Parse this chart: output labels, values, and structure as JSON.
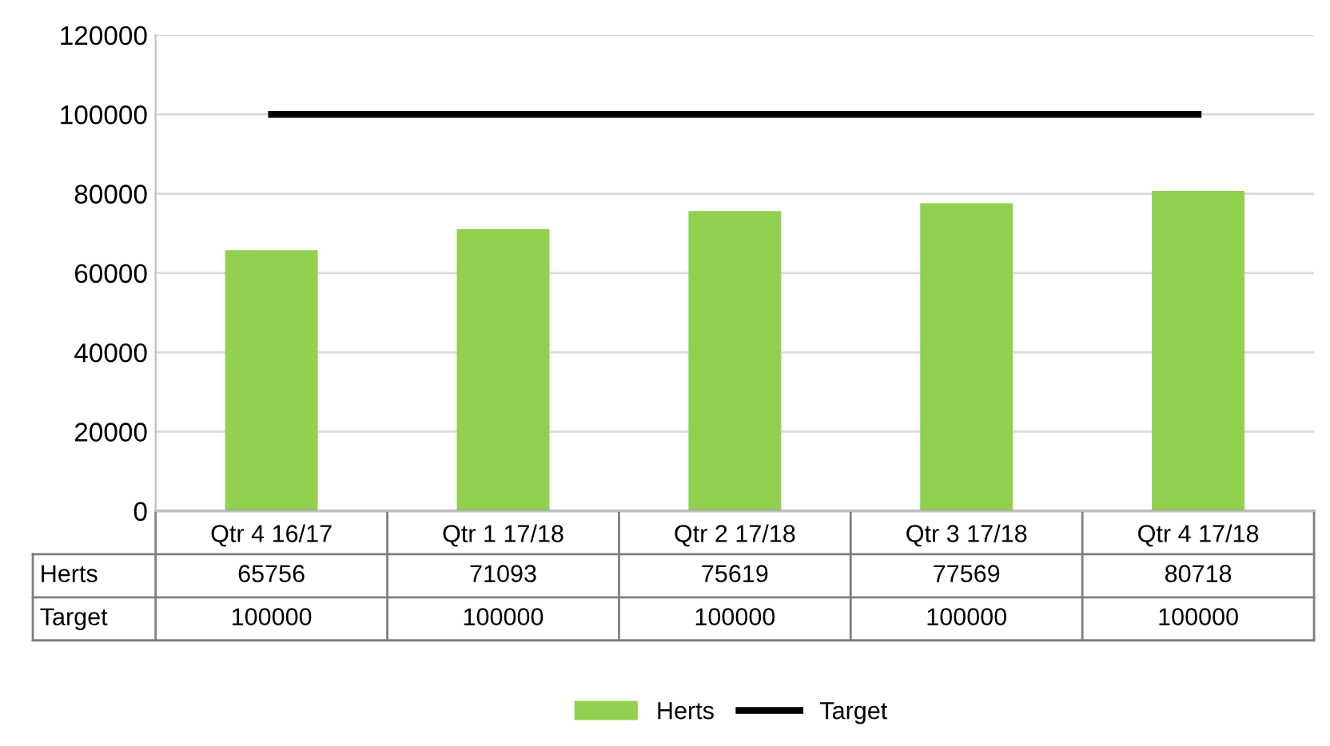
{
  "chart_data": {
    "type": "bar",
    "categories": [
      "Qtr 4 16/17",
      "Qtr 1 17/18",
      "Qtr 2 17/18",
      "Qtr 3 17/18",
      "Qtr 4 17/18"
    ],
    "series": [
      {
        "name": "Herts",
        "color": "#92d050",
        "values": [
          65756,
          71093,
          75619,
          77569,
          80718
        ]
      },
      {
        "name": "Target",
        "type": "line",
        "color": "#000000",
        "values": [
          100000,
          100000,
          100000,
          100000,
          100000
        ]
      }
    ],
    "ylim": [
      0,
      120000
    ],
    "yticks": [
      0,
      20000,
      40000,
      60000,
      80000,
      100000,
      120000
    ],
    "grid": "y",
    "legend": "bottom",
    "data_labels": true
  }
}
